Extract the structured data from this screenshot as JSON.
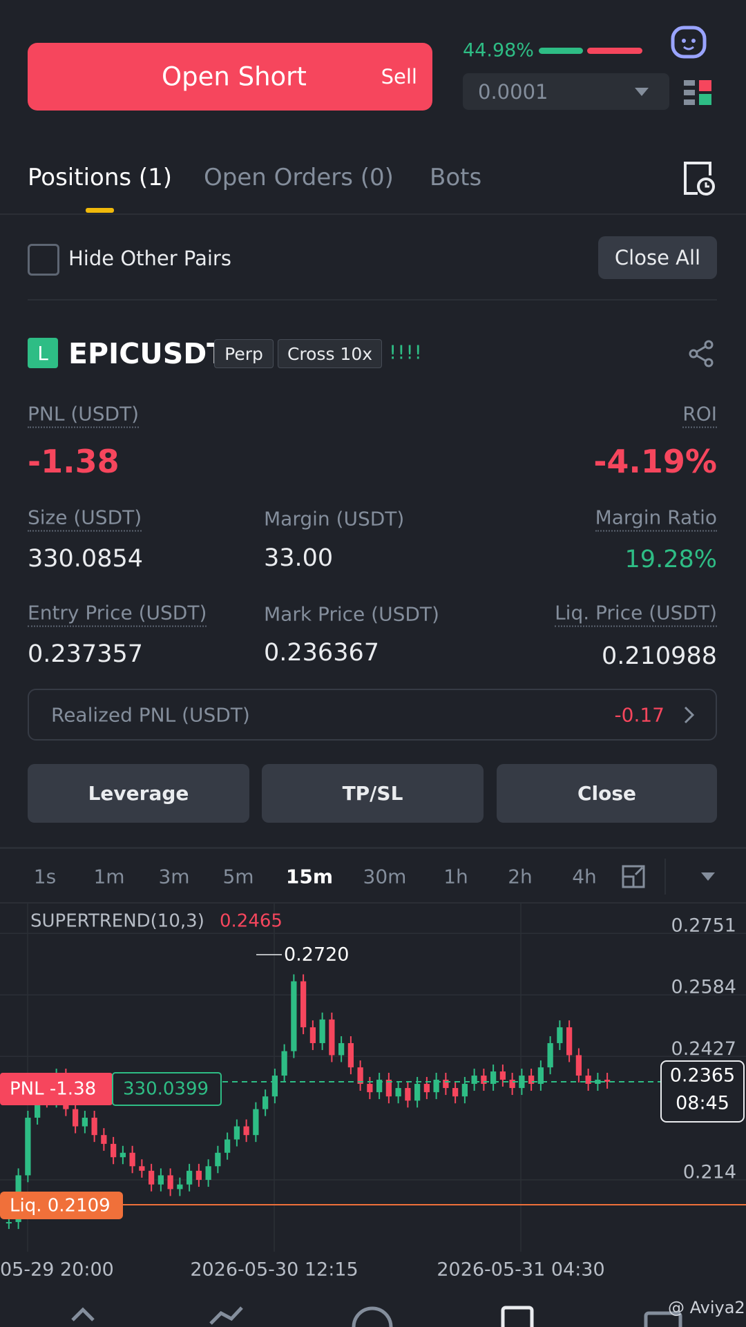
{
  "order_panel": {
    "button": "Open Short",
    "button_side": "Sell",
    "ratio": "44.98%",
    "step": "0.0001"
  },
  "tabs": [
    "Positions (1)",
    "Open Orders (0)",
    "Bots"
  ],
  "filter": {
    "checkbox": "Hide Other Pairs",
    "action": "Close All"
  },
  "position": {
    "side_badge": "L",
    "symbol": "EPICUSDT",
    "tags": [
      "Perp",
      "Cross 10x"
    ],
    "signal": "!!!!",
    "pnl_label": "PNL (USDT)",
    "pnl": "-1.38",
    "roi_label": "ROI",
    "roi": "-4.19%",
    "fields": [
      {
        "label": "Size (USDT)",
        "value": "330.0854"
      },
      {
        "label": "Margin (USDT)",
        "value": "33.00"
      },
      {
        "label": "Margin Ratio",
        "value": "19.28%"
      },
      {
        "label": "Entry Price (USDT)",
        "value": "0.237357"
      },
      {
        "label": "Mark Price (USDT)",
        "value": "0.236367"
      },
      {
        "label": "Liq. Price (USDT)",
        "value": "0.210988"
      }
    ],
    "realized_label": "Realized PNL (USDT)",
    "realized": "-0.17",
    "actions": [
      "Leverage",
      "TP/SL",
      "Close"
    ]
  },
  "intervals": [
    "1s",
    "1m",
    "3m",
    "5m",
    "15m",
    "30m",
    "1h",
    "2h",
    "4h"
  ],
  "active_interval": "15m",
  "chart_data": {
    "type": "candlestick",
    "indicator": "SUPERTREND(10,3)",
    "indicator_value": "0.2465",
    "log_scale": true,
    "ylim": [
      0.1989,
      0.2838
    ],
    "yticks": [
      0.2751,
      0.2584,
      0.2427,
      0.214
    ],
    "x": [
      "05-29 20:00",
      "2026-05-30 12:15",
      "2026-05-31 04:30"
    ],
    "high_label": "0.2720",
    "pnl_tag": "PNL -1.38",
    "size_tag": "330.0399",
    "liq_tag": "Liq. 0.2109",
    "last_price": 0.2365,
    "last_price_label": "0.2365",
    "countdown": "08:45",
    "closes": [
      0.205,
      0.215,
      0.228,
      0.236,
      0.232,
      0.238,
      0.23,
      0.226,
      0.228,
      0.224,
      0.222,
      0.219,
      0.22,
      0.217,
      0.216,
      0.213,
      0.215,
      0.212,
      0.213,
      0.216,
      0.214,
      0.217,
      0.22,
      0.223,
      0.226,
      0.224,
      0.23,
      0.233,
      0.238,
      0.244,
      0.262,
      0.25,
      0.246,
      0.252,
      0.243,
      0.246,
      0.24,
      0.236,
      0.234,
      0.237,
      0.233,
      0.235,
      0.232,
      0.236,
      0.234,
      0.237,
      0.235,
      0.233,
      0.236,
      0.238,
      0.236,
      0.239,
      0.237,
      0.235,
      0.238,
      0.236,
      0.24,
      0.246,
      0.25,
      0.243,
      0.238,
      0.236,
      0.237,
      0.2365
    ],
    "up_color": "#2ebd85",
    "down_color": "#f6465d"
  },
  "watermark": "@ Aviya2"
}
